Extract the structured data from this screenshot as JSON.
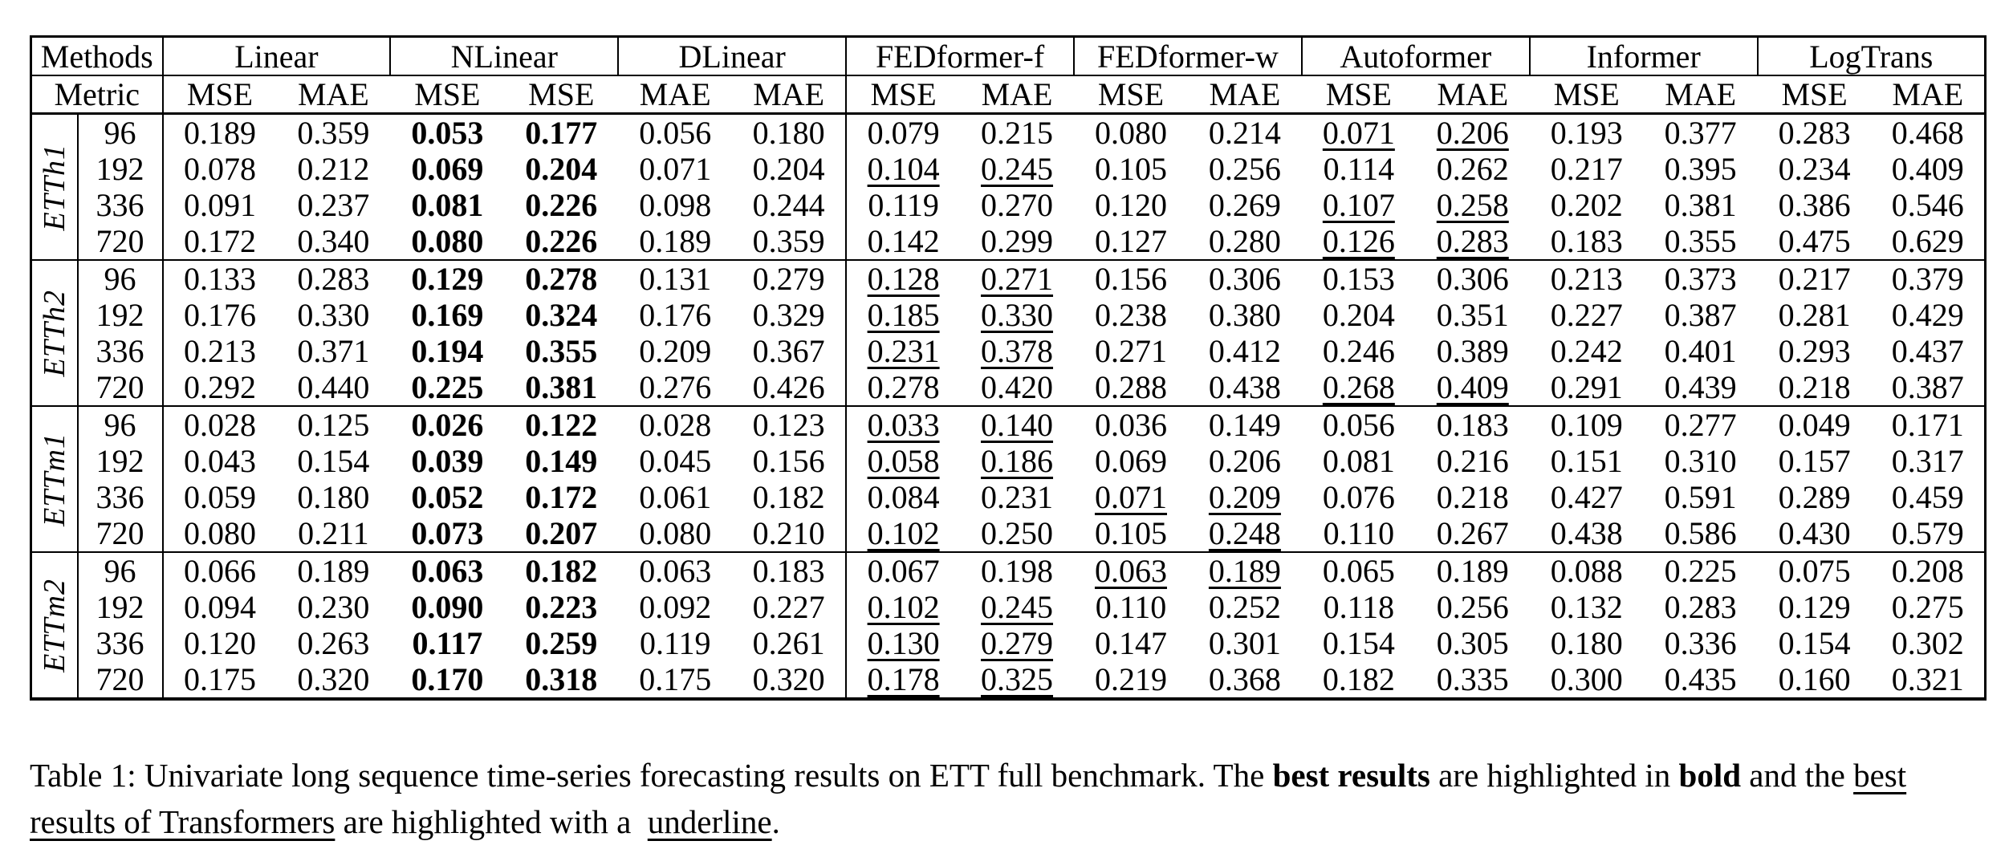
{
  "colors": {
    "text": "#000000",
    "background": "#ffffff"
  },
  "table": {
    "header": {
      "methods_label": "Methods",
      "metric_label": "Metric",
      "groups": [
        {
          "name": "Linear",
          "metrics": [
            "MSE",
            "MAE"
          ]
        },
        {
          "name": "NLinear",
          "metrics": [
            "MSE",
            "MSE"
          ]
        },
        {
          "name": "DLinear",
          "metrics": [
            "MAE",
            "MAE"
          ]
        },
        {
          "name": "FEDformer-f",
          "metrics": [
            "MSE",
            "MAE"
          ]
        },
        {
          "name": "FEDformer-w",
          "metrics": [
            "MSE",
            "MAE"
          ]
        },
        {
          "name": "Autoformer",
          "metrics": [
            "MSE",
            "MAE"
          ]
        },
        {
          "name": "Informer",
          "metrics": [
            "MSE",
            "MAE"
          ]
        },
        {
          "name": "LogTrans",
          "metrics": [
            "MSE",
            "MAE"
          ]
        }
      ]
    },
    "row_groups": [
      {
        "dataset": "ETTh1",
        "rows": [
          {
            "period": "96",
            "values": [
              "0.189",
              "0.359",
              "0.053",
              "0.177",
              "0.056",
              "0.180",
              "0.079",
              "0.215",
              "0.080",
              "0.214",
              "0.071",
              "0.206",
              "0.193",
              "0.377",
              "0.283",
              "0.468"
            ],
            "bold": [
              2,
              3
            ],
            "underline": [
              10,
              11
            ]
          },
          {
            "period": "192",
            "values": [
              "0.078",
              "0.212",
              "0.069",
              "0.204",
              "0.071",
              "0.204",
              "0.104",
              "0.245",
              "0.105",
              "0.256",
              "0.114",
              "0.262",
              "0.217",
              "0.395",
              "0.234",
              "0.409"
            ],
            "bold": [
              2,
              3
            ],
            "underline": [
              6,
              7
            ]
          },
          {
            "period": "336",
            "values": [
              "0.091",
              "0.237",
              "0.081",
              "0.226",
              "0.098",
              "0.244",
              "0.119",
              "0.270",
              "0.120",
              "0.269",
              "0.107",
              "0.258",
              "0.202",
              "0.381",
              "0.386",
              "0.546"
            ],
            "bold": [
              2,
              3
            ],
            "underline": [
              10,
              11
            ]
          },
          {
            "period": "720",
            "values": [
              "0.172",
              "0.340",
              "0.080",
              "0.226",
              "0.189",
              "0.359",
              "0.142",
              "0.299",
              "0.127",
              "0.280",
              "0.126",
              "0.283",
              "0.183",
              "0.355",
              "0.475",
              "0.629"
            ],
            "bold": [
              2,
              3
            ],
            "underline": [
              10,
              11
            ]
          }
        ]
      },
      {
        "dataset": "ETTh2",
        "rows": [
          {
            "period": "96",
            "values": [
              "0.133",
              "0.283",
              "0.129",
              "0.278",
              "0.131",
              "0.279",
              "0.128",
              "0.271",
              "0.156",
              "0.306",
              "0.153",
              "0.306",
              "0.213",
              "0.373",
              "0.217",
              "0.379"
            ],
            "bold": [
              2,
              3
            ],
            "underline": [
              6,
              7
            ]
          },
          {
            "period": "192",
            "values": [
              "0.176",
              "0.330",
              "0.169",
              "0.324",
              "0.176",
              "0.329",
              "0.185",
              "0.330",
              "0.238",
              "0.380",
              "0.204",
              "0.351",
              "0.227",
              "0.387",
              "0.281",
              "0.429"
            ],
            "bold": [
              2,
              3
            ],
            "underline": [
              6,
              7
            ]
          },
          {
            "period": "336",
            "values": [
              "0.213",
              "0.371",
              "0.194",
              "0.355",
              "0.209",
              "0.367",
              "0.231",
              "0.378",
              "0.271",
              "0.412",
              "0.246",
              "0.389",
              "0.242",
              "0.401",
              "0.293",
              "0.437"
            ],
            "bold": [
              2,
              3
            ],
            "underline": [
              6,
              7
            ]
          },
          {
            "period": "720",
            "values": [
              "0.292",
              "0.440",
              "0.225",
              "0.381",
              "0.276",
              "0.426",
              "0.278",
              "0.420",
              "0.288",
              "0.438",
              "0.268",
              "0.409",
              "0.291",
              "0.439",
              "0.218",
              "0.387"
            ],
            "bold": [
              2,
              3
            ],
            "underline": [
              10,
              11
            ]
          }
        ]
      },
      {
        "dataset": "ETTm1",
        "rows": [
          {
            "period": "96",
            "values": [
              "0.028",
              "0.125",
              "0.026",
              "0.122",
              "0.028",
              "0.123",
              "0.033",
              "0.140",
              "0.036",
              "0.149",
              "0.056",
              "0.183",
              "0.109",
              "0.277",
              "0.049",
              "0.171"
            ],
            "bold": [
              2,
              3
            ],
            "underline": [
              6,
              7
            ]
          },
          {
            "period": "192",
            "values": [
              "0.043",
              "0.154",
              "0.039",
              "0.149",
              "0.045",
              "0.156",
              "0.058",
              "0.186",
              "0.069",
              "0.206",
              "0.081",
              "0.216",
              "0.151",
              "0.310",
              "0.157",
              "0.317"
            ],
            "bold": [
              2,
              3
            ],
            "underline": [
              6,
              7
            ]
          },
          {
            "period": "336",
            "values": [
              "0.059",
              "0.180",
              "0.052",
              "0.172",
              "0.061",
              "0.182",
              "0.084",
              "0.231",
              "0.071",
              "0.209",
              "0.076",
              "0.218",
              "0.427",
              "0.591",
              "0.289",
              "0.459"
            ],
            "bold": [
              2,
              3
            ],
            "underline": [
              8,
              9
            ]
          },
          {
            "period": "720",
            "values": [
              "0.080",
              "0.211",
              "0.073",
              "0.207",
              "0.080",
              "0.210",
              "0.102",
              "0.250",
              "0.105",
              "0.248",
              "0.110",
              "0.267",
              "0.438",
              "0.586",
              "0.430",
              "0.579"
            ],
            "bold": [
              2,
              3
            ],
            "underline": [
              6,
              9
            ]
          }
        ]
      },
      {
        "dataset": "ETTm2",
        "rows": [
          {
            "period": "96",
            "values": [
              "0.066",
              "0.189",
              "0.063",
              "0.182",
              "0.063",
              "0.183",
              "0.067",
              "0.198",
              "0.063",
              "0.189",
              "0.065",
              "0.189",
              "0.088",
              "0.225",
              "0.075",
              "0.208"
            ],
            "bold": [
              2,
              3
            ],
            "underline": [
              8,
              9
            ]
          },
          {
            "period": "192",
            "values": [
              "0.094",
              "0.230",
              "0.090",
              "0.223",
              "0.092",
              "0.227",
              "0.102",
              "0.245",
              "0.110",
              "0.252",
              "0.118",
              "0.256",
              "0.132",
              "0.283",
              "0.129",
              "0.275"
            ],
            "bold": [
              2,
              3
            ],
            "underline": [
              6,
              7
            ]
          },
          {
            "period": "336",
            "values": [
              "0.120",
              "0.263",
              "0.117",
              "0.259",
              "0.119",
              "0.261",
              "0.130",
              "0.279",
              "0.147",
              "0.301",
              "0.154",
              "0.305",
              "0.180",
              "0.336",
              "0.154",
              "0.302"
            ],
            "bold": [
              2,
              3
            ],
            "underline": [
              6,
              7
            ]
          },
          {
            "period": "720",
            "values": [
              "0.175",
              "0.320",
              "0.170",
              "0.318",
              "0.175",
              "0.320",
              "0.178",
              "0.325",
              "0.219",
              "0.368",
              "0.182",
              "0.335",
              "0.300",
              "0.435",
              "0.160",
              "0.321"
            ],
            "bold": [
              2,
              3
            ],
            "underline": [
              6,
              7
            ]
          }
        ]
      }
    ]
  },
  "caption": {
    "segments": [
      {
        "text": "Table 1: Univariate long sequence time-series forecasting results on ETT full benchmark. The ",
        "style": "normal"
      },
      {
        "text": "best results",
        "style": "bold"
      },
      {
        "text": " are highlighted in ",
        "style": "normal"
      },
      {
        "text": "bold",
        "style": "bold"
      },
      {
        "text": " and the ",
        "style": "normal"
      },
      {
        "text": "best results of Transformers",
        "style": "underline"
      },
      {
        "text": " are highlighted with a  ",
        "style": "normal"
      },
      {
        "text": "underline",
        "style": "underline"
      },
      {
        "text": ".",
        "style": "normal"
      }
    ]
  }
}
